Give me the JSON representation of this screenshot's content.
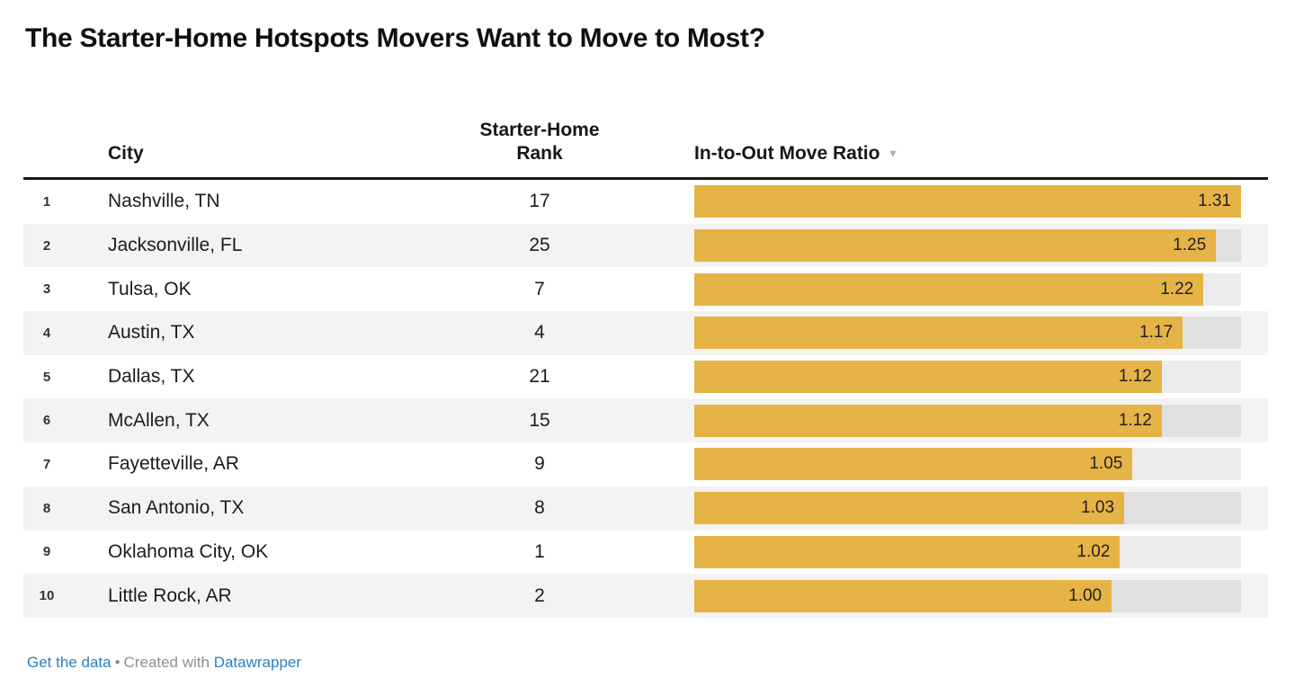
{
  "title": "The Starter-Home Hotspots Movers Want to Move to Most?",
  "header": {
    "city_label": "City",
    "rank_label_line1": "Starter-Home",
    "rank_label_line2": "Rank",
    "ratio_label": "In-to-Out Move Ratio",
    "sort_icon": "▼"
  },
  "chart_data": {
    "type": "bar",
    "title": "The Starter-Home Hotspots Movers Want to Move to Most?",
    "columns": [
      "",
      "City",
      "Starter-Home Rank",
      "In-to-Out Move Ratio"
    ],
    "categories": [
      "Nashville, TN",
      "Jacksonville, FL",
      "Tulsa, OK",
      "Austin, TX",
      "Dallas, TX",
      "McAllen, TX",
      "Fayetteville, AR",
      "San Antonio, TX",
      "Oklahoma City, OK",
      "Little Rock, AR"
    ],
    "values": [
      1.31,
      1.25,
      1.22,
      1.17,
      1.12,
      1.12,
      1.05,
      1.03,
      1.02,
      1.0
    ],
    "rows": [
      {
        "pos": "1",
        "city": "Nashville, TN",
        "rank": "17",
        "ratio_label": "1.31",
        "ratio": 1.31
      },
      {
        "pos": "2",
        "city": "Jacksonville, FL",
        "rank": "25",
        "ratio_label": "1.25",
        "ratio": 1.25
      },
      {
        "pos": "3",
        "city": "Tulsa, OK",
        "rank": "7",
        "ratio_label": "1.22",
        "ratio": 1.22
      },
      {
        "pos": "4",
        "city": "Austin, TX",
        "rank": "4",
        "ratio_label": "1.17",
        "ratio": 1.17
      },
      {
        "pos": "5",
        "city": "Dallas, TX",
        "rank": "21",
        "ratio_label": "1.12",
        "ratio": 1.12
      },
      {
        "pos": "6",
        "city": "McAllen, TX",
        "rank": "15",
        "ratio_label": "1.12",
        "ratio": 1.12
      },
      {
        "pos": "7",
        "city": "Fayetteville, AR",
        "rank": "9",
        "ratio_label": "1.05",
        "ratio": 1.05
      },
      {
        "pos": "8",
        "city": "San Antonio, TX",
        "rank": "8",
        "ratio_label": "1.03",
        "ratio": 1.03
      },
      {
        "pos": "9",
        "city": "Oklahoma City, OK",
        "rank": "1",
        "ratio_label": "1.02",
        "ratio": 1.02
      },
      {
        "pos": "10",
        "city": "Little Rock, AR",
        "rank": "2",
        "ratio_label": "1.00",
        "ratio": 1.0
      }
    ],
    "value_max": 1.31,
    "sort": {
      "column": "In-to-Out Move Ratio",
      "direction": "descending"
    },
    "layout": {
      "bars_zero_based": true,
      "row_striping": "even",
      "grid": false,
      "legend": false
    }
  },
  "colors": {
    "bar": "#e6b346",
    "stripe": "#f3f3f3",
    "header_rule": "#181818",
    "link": "#2c80c2",
    "muted_text": "#8f8f8f"
  },
  "footer": {
    "get_data_label": "Get the data",
    "separator": "•",
    "created_with_label": "Created with",
    "brand_label": "Datawrapper"
  }
}
